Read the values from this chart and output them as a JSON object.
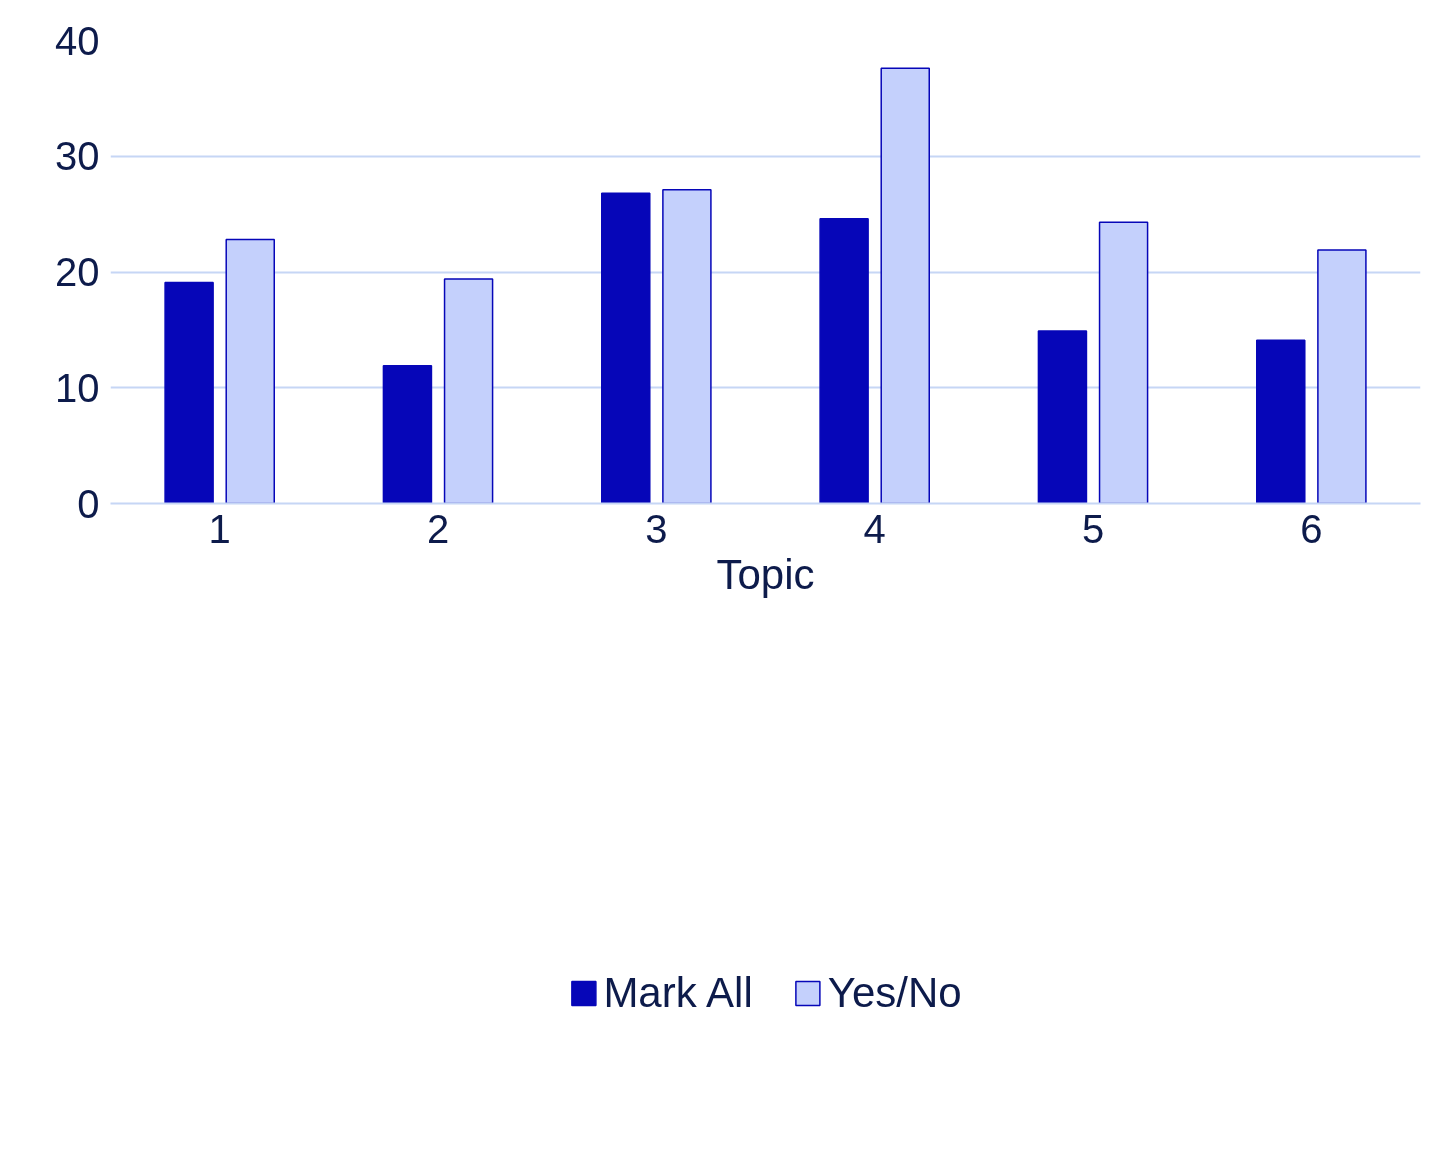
{
  "chart_data": {
    "type": "bar",
    "xlabel": "Topic",
    "categories": [
      "1",
      "2",
      "3",
      "4",
      "5",
      "6"
    ],
    "series": [
      {
        "name": "Mark All",
        "color": "#0606b8",
        "values": [
          19.1,
          11.9,
          26.8,
          24.6,
          14.9,
          14.1
        ]
      },
      {
        "name": "Yes/No",
        "color": "#c4d0fc",
        "values": [
          22.8,
          19.4,
          27.1,
          37.6,
          24.3,
          21.9
        ]
      }
    ],
    "ylim": [
      0,
      40
    ],
    "yticks": [
      0,
      10,
      20,
      30,
      40
    ],
    "grid": "y",
    "legend": "bottom"
  }
}
